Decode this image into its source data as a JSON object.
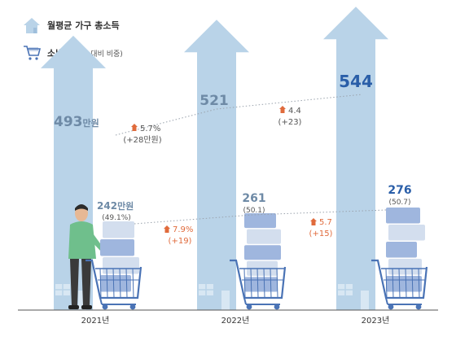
{
  "legend": {
    "income_label": "월평균 가구 총소득",
    "spend_label": "소비액",
    "spend_sub": "(소득 대비 비중)"
  },
  "colors": {
    "house": "#b9d3e8",
    "house_roof": "#a9c8e2",
    "cart": "#4a73b5",
    "box_light": "#d3deee",
    "box_mid": "#9fb6de",
    "income_text": "#6e8aa6",
    "income_text_latest": "#2a5ea8",
    "change_up": "#e06b3c",
    "grid_line": "#9aa3ad"
  },
  "chart_data": {
    "type": "bar",
    "categories": [
      "2021년",
      "2022년",
      "2023년"
    ],
    "series": [
      {
        "name": "월평균 가구 총소득",
        "values": [
          493,
          521,
          544
        ],
        "labels": [
          "493",
          "521",
          "544"
        ],
        "unit_first": "만원"
      },
      {
        "name": "소비액",
        "values": [
          242,
          261,
          276
        ],
        "labels": [
          "242",
          "261",
          "276"
        ],
        "unit_first": "만원",
        "share_labels": [
          "(49.1%)",
          "(50.1)",
          "(50.7)"
        ]
      }
    ],
    "income_changes": [
      {
        "pct": "5.7%",
        "abs": "(+28만원)"
      },
      {
        "pct": "4.4",
        "abs": "(+23)"
      }
    ],
    "spend_changes": [
      {
        "pct": "7.9%",
        "abs": "(+19)"
      },
      {
        "pct": "5.7",
        "abs": "(+15)"
      }
    ]
  }
}
